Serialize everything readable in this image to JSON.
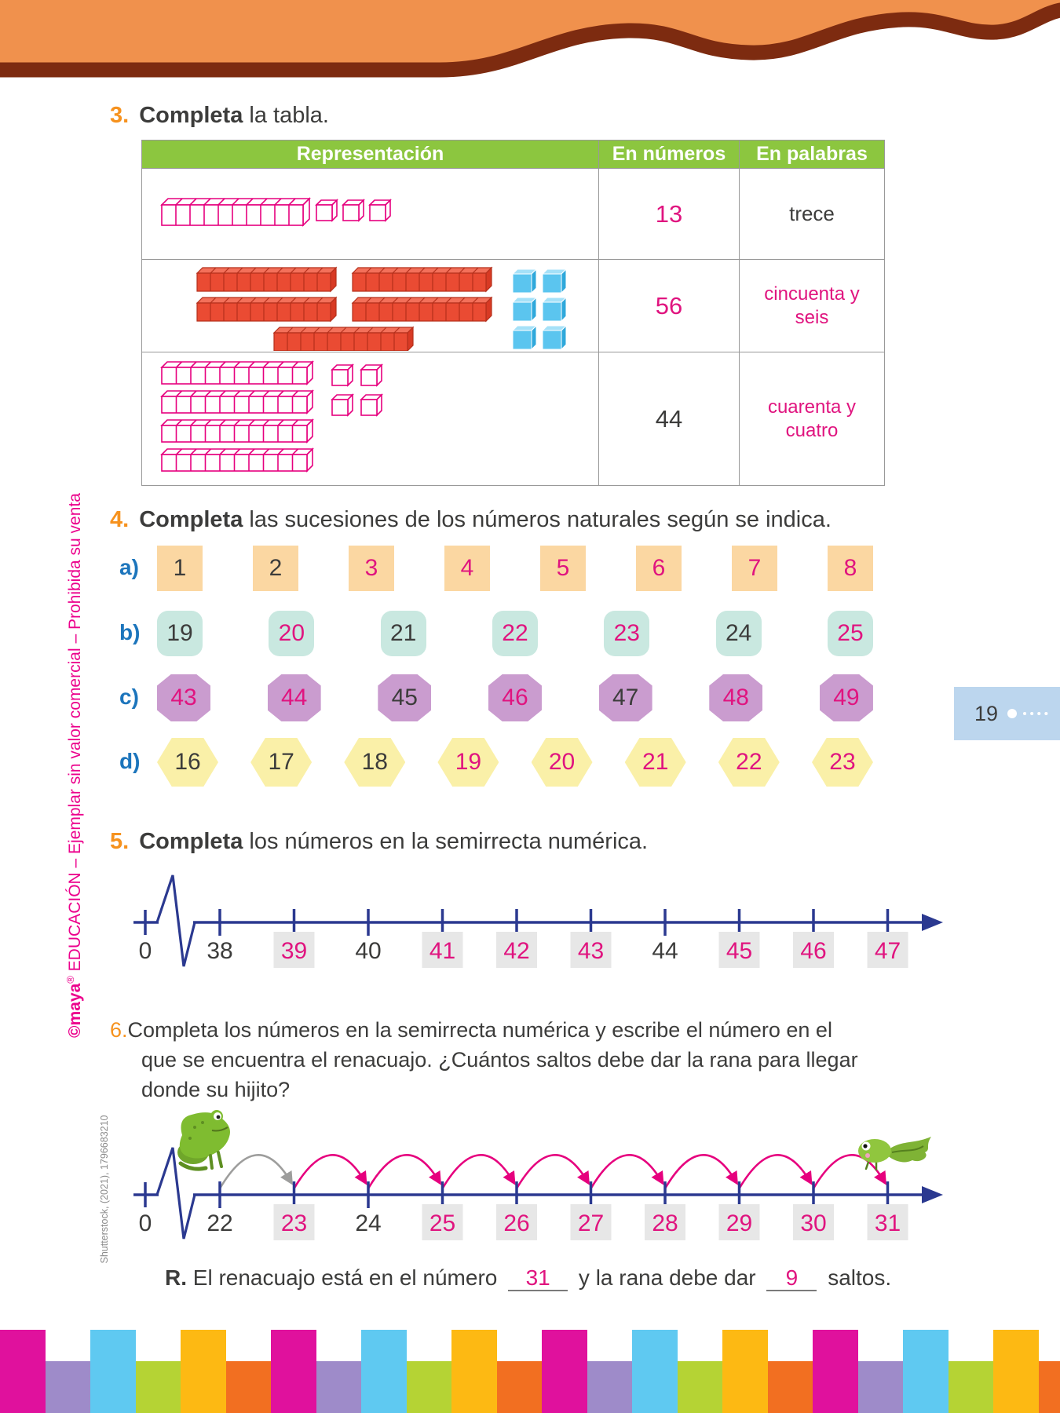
{
  "colors": {
    "band_orange": "#F0914D",
    "band_maroon": "#7D2B10",
    "heading_num_orange": "#F6921E",
    "text_dark": "#3C3C3B",
    "answer_pink": "#E0147F",
    "table_header_green": "#8CC63F",
    "label_blue": "#1C75BC",
    "line_navy": "#2B3990",
    "answer_box_gray": "#E7E7E7",
    "rod_magenta": "#E6007E",
    "red_rod_front": "#EA4B33",
    "red_rod_top": "#F3705A",
    "red_rod_side": "#D83A24",
    "red_rod_stroke": "#B5301C",
    "blue_cube_front": "#5BC5EF",
    "blue_cube_top": "#A5E1F8",
    "blue_cube_side": "#2FA8DB",
    "seq_a_bg": "#FBD7A2",
    "seq_b_bg": "#C9E8E0",
    "seq_c_bg": "#CA9CCF",
    "seq_d_bg": "#FAF0A8",
    "jump_gray": "#9D9D9C",
    "tab_blue": "#BCD6EE",
    "sidebar_pink": "#EC008C",
    "credit_gray": "#8A8A8A"
  },
  "sidebar": {
    "copyright_bold": "©maya",
    "copyright_reg": "®",
    "copyright_rest": " EDUCACIÓN – Ejemplar sin valor comercial – Prohibida su venta",
    "credit": "Shutterstock, (2021), 1796683210"
  },
  "page_tab": {
    "number": "19"
  },
  "q3": {
    "num": "3.",
    "verb": "Completa",
    "rest": " la tabla.",
    "table": {
      "headers": [
        "Representación",
        "En números",
        "En palabras"
      ],
      "rows": [
        {
          "rep": {
            "tens": 1,
            "ones": 3,
            "style": "outline"
          },
          "number": "13",
          "number_color": "pink",
          "words": "trece",
          "words_color": "dark"
        },
        {
          "rep": {
            "tens": 5,
            "ones": 6,
            "style": "solid"
          },
          "number": "56",
          "number_color": "pink",
          "words": "cincuenta y seis",
          "words_color": "pink"
        },
        {
          "rep": {
            "tens": 4,
            "ones": 4,
            "style": "outline"
          },
          "number": "44",
          "number_color": "dark",
          "words": "cuarenta y cuatro",
          "words_color": "pink"
        }
      ]
    }
  },
  "q4": {
    "num": "4.",
    "verb": "Completa",
    "rest": " las sucesiones de los números naturales según se indica.",
    "rows": [
      {
        "label": "a)",
        "shape": "sq",
        "items": [
          {
            "v": "1",
            "a": false
          },
          {
            "v": "2",
            "a": false
          },
          {
            "v": "3",
            "a": true
          },
          {
            "v": "4",
            "a": true
          },
          {
            "v": "5",
            "a": true
          },
          {
            "v": "6",
            "a": true
          },
          {
            "v": "7",
            "a": true
          },
          {
            "v": "8",
            "a": true
          }
        ]
      },
      {
        "label": "b)",
        "shape": "rd",
        "items": [
          {
            "v": "19",
            "a": false
          },
          {
            "v": "20",
            "a": true
          },
          {
            "v": "21",
            "a": false
          },
          {
            "v": "22",
            "a": true
          },
          {
            "v": "23",
            "a": true
          },
          {
            "v": "24",
            "a": false
          },
          {
            "v": "25",
            "a": true
          }
        ]
      },
      {
        "label": "c)",
        "shape": "oc",
        "items": [
          {
            "v": "43",
            "a": true
          },
          {
            "v": "44",
            "a": true
          },
          {
            "v": "45",
            "a": false
          },
          {
            "v": "46",
            "a": true
          },
          {
            "v": "47",
            "a": false
          },
          {
            "v": "48",
            "a": true
          },
          {
            "v": "49",
            "a": true
          }
        ]
      },
      {
        "label": "d)",
        "shape": "hx",
        "items": [
          {
            "v": "16",
            "a": false
          },
          {
            "v": "17",
            "a": false
          },
          {
            "v": "18",
            "a": false
          },
          {
            "v": "19",
            "a": true
          },
          {
            "v": "20",
            "a": true
          },
          {
            "v": "21",
            "a": true
          },
          {
            "v": "22",
            "a": true
          },
          {
            "v": "23",
            "a": true
          }
        ]
      }
    ]
  },
  "q5": {
    "num": "5.",
    "verb": "Completa",
    "rest": " los números en la semirrecta numérica.",
    "line": {
      "zero": "0",
      "ticks": [
        {
          "v": "38",
          "a": false
        },
        {
          "v": "39",
          "a": true
        },
        {
          "v": "40",
          "a": false
        },
        {
          "v": "41",
          "a": true
        },
        {
          "v": "42",
          "a": true
        },
        {
          "v": "43",
          "a": true
        },
        {
          "v": "44",
          "a": false
        },
        {
          "v": "45",
          "a": true
        },
        {
          "v": "46",
          "a": true
        },
        {
          "v": "47",
          "a": true
        }
      ]
    }
  },
  "q6": {
    "num": "6.",
    "verb": "Completa",
    "mid": " los números en la semirrecta numérica y ",
    "verb2": "escribe",
    "rest": " el número en el",
    "line2": "que se encuentra el renacuajo. ¿Cuántos saltos debe dar la rana para llegar",
    "line3": "donde su hijito?",
    "line": {
      "zero": "0",
      "ticks": [
        {
          "v": "22",
          "a": false
        },
        {
          "v": "23",
          "a": true
        },
        {
          "v": "24",
          "a": false
        },
        {
          "v": "25",
          "a": true
        },
        {
          "v": "26",
          "a": true
        },
        {
          "v": "27",
          "a": true
        },
        {
          "v": "28",
          "a": true
        },
        {
          "v": "29",
          "a": true
        },
        {
          "v": "30",
          "a": true
        },
        {
          "v": "31",
          "a": true
        }
      ]
    },
    "jumps": {
      "count": 9,
      "first_is_gray": true
    },
    "answer": {
      "prefix": "R.",
      "text1": " El renacuajo está en el número",
      "blank1": "31",
      "text2": "y la rana debe dar",
      "blank2": "9",
      "text3": "saltos."
    }
  },
  "footer": {
    "stripe_colors": [
      "#E0119D",
      "#9E8BC9",
      "#5FC9F1",
      "#B5D334",
      "#FDB913",
      "#F26F21"
    ],
    "stripe_count": 24
  }
}
